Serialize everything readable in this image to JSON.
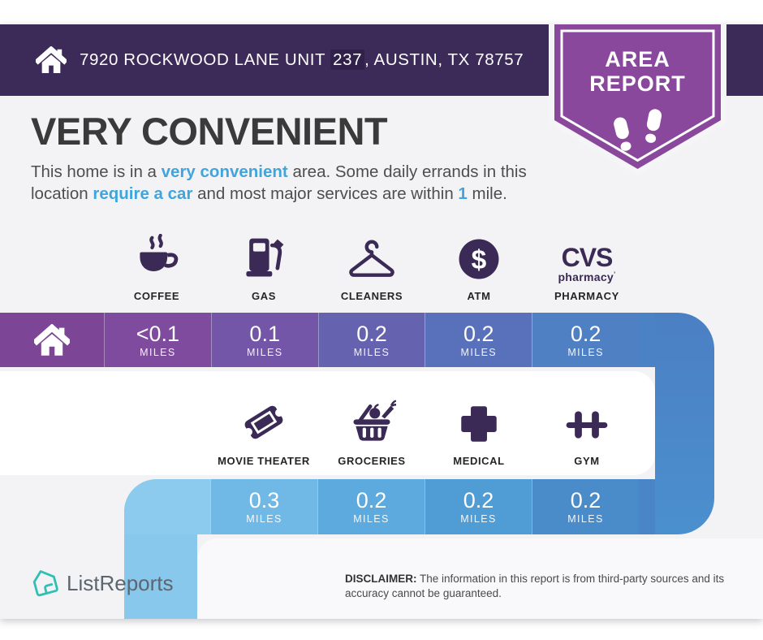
{
  "header": {
    "address_prefix": "7920 ROCKWOOD LANE UNIT ",
    "address_unit": "237",
    "address_suffix": ", AUSTIN, TX 78757"
  },
  "badge": {
    "line1": "AREA",
    "line2": "REPORT"
  },
  "headline": "VERY CONVENIENT",
  "description": {
    "segments": [
      {
        "text": "This home is in a ",
        "highlight": false
      },
      {
        "text": "very convenient",
        "highlight": true
      },
      {
        "text": " area. Some daily errands in this",
        "highlight": false
      },
      {
        "break": true
      },
      {
        "text": "location ",
        "highlight": false
      },
      {
        "text": "require a car",
        "highlight": true
      },
      {
        "text": " and most major services are within ",
        "highlight": false
      },
      {
        "text": "1",
        "highlight": true
      },
      {
        "text": " mile.",
        "highlight": false
      }
    ]
  },
  "amenities_row1": [
    {
      "label": "COFFEE",
      "icon": "coffee-icon",
      "distance": "<0.1",
      "unit": "MILES"
    },
    {
      "label": "GAS",
      "icon": "gas-pump-icon",
      "distance": "0.1",
      "unit": "MILES"
    },
    {
      "label": "CLEANERS",
      "icon": "hanger-icon",
      "distance": "0.2",
      "unit": "MILES"
    },
    {
      "label": "ATM",
      "icon": "dollar-sign-icon",
      "distance": "0.2",
      "unit": "MILES"
    },
    {
      "label": "PHARMACY",
      "icon": "cvs-pharmacy-logo",
      "distance": "0.2",
      "unit": "MILES"
    }
  ],
  "amenities_row2": [
    {
      "label": "MOVIE THEATER",
      "icon": "ticket-icon",
      "distance": "0.3",
      "unit": "MILES"
    },
    {
      "label": "GROCERIES",
      "icon": "grocery-basket-icon",
      "distance": "0.2",
      "unit": "MILES"
    },
    {
      "label": "MEDICAL",
      "icon": "medical-cross-icon",
      "distance": "0.2",
      "unit": "MILES"
    },
    {
      "label": "GYM",
      "icon": "dumbbell-icon",
      "distance": "0.2",
      "unit": "MILES"
    }
  ],
  "cvs_logo": {
    "top": "CVS",
    "bottom": "pharmacy",
    "mark": "’"
  },
  "footer": {
    "brand": "ListReports",
    "disclaimer_label": "DISCLAIMER:",
    "disclaimer_text": " The information in this report is from third-party sources and its accuracy cannot be guaranteed."
  },
  "colors": {
    "header_bar": "#3c2a58",
    "badge_purple": "#8a489c",
    "icon_purple": "#3b2a55",
    "accent_text_blue": "#3fa5dc",
    "brand_teal": "#2fbfb5",
    "bar1_gradient": [
      "#7c4596",
      "#7f4b9e",
      "#7356a7",
      "#6562b0",
      "#5971ba",
      "#4f80c3"
    ],
    "bar2_gradient": [
      "#8ccbee",
      "#70b9e6",
      "#5caade",
      "#509cd5",
      "#4a8cca"
    ],
    "connector_blue": "#4b85c8"
  }
}
